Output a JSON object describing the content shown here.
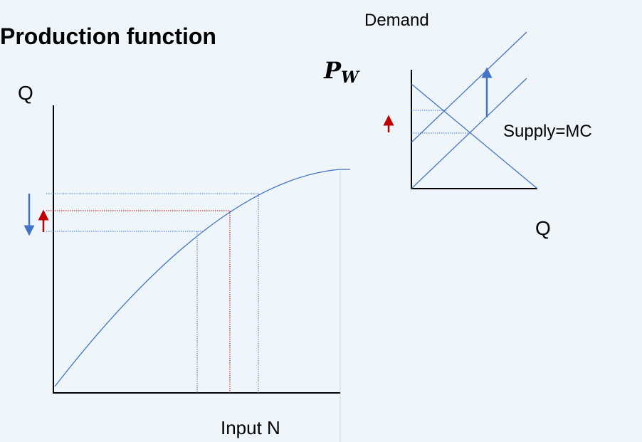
{
  "title": "Production function",
  "left_chart": {
    "y_label": "Q",
    "x_label": "Input N"
  },
  "right_chart": {
    "demand_label": "Demand",
    "price_label": {
      "main": "P",
      "subscript": "W"
    },
    "supply_label": "Supply=MC",
    "x_label": "Q"
  }
}
